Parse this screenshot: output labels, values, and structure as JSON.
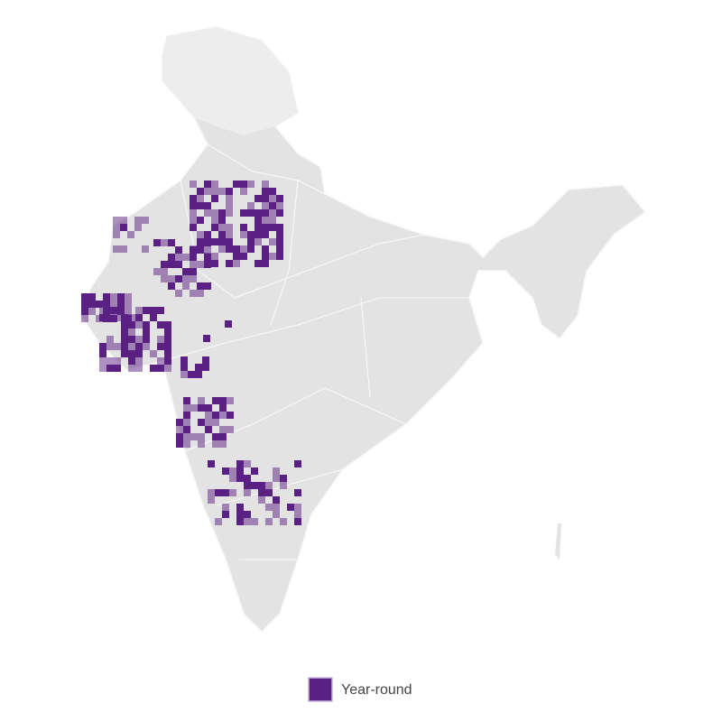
{
  "legend": {
    "label": "Year-round",
    "color": "#5b2083"
  }
}
